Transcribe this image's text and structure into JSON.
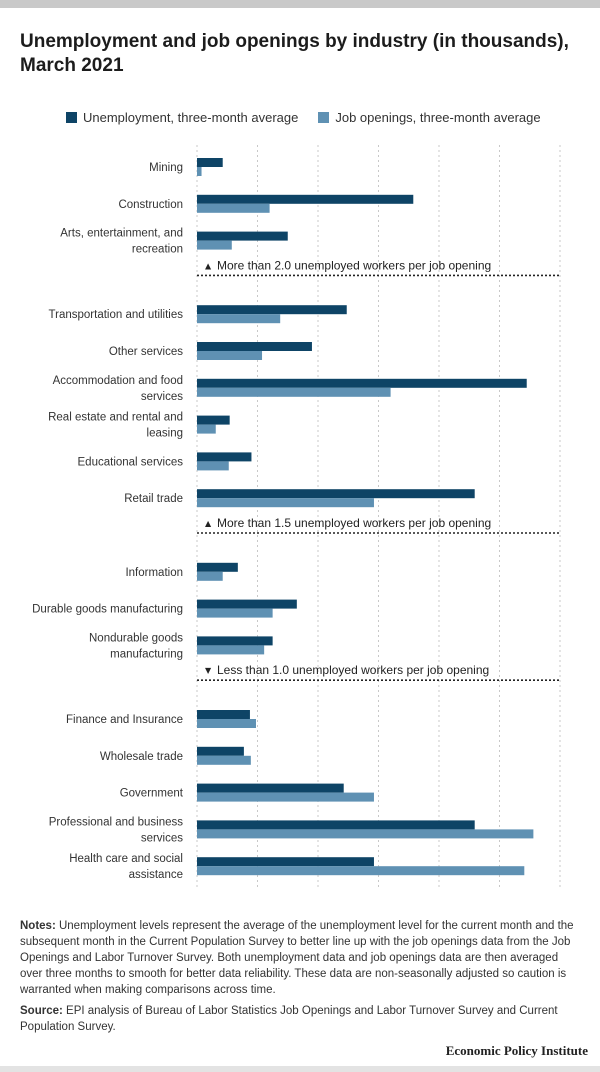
{
  "title": "Unemployment and job openings by industry (in thousands), March 2021",
  "legend": [
    {
      "label": "Unemployment, three-month average",
      "color": "#0e4466"
    },
    {
      "label": "Job openings, three-month average",
      "color": "#5f91b3"
    }
  ],
  "chart_data": {
    "type": "bar",
    "orientation": "horizontal",
    "grid": true,
    "xlim": [
      0,
      1200
    ],
    "tick_labels_shown": false,
    "series": [
      {
        "name": "Unemployment, three-month average",
        "color": "#0e4466"
      },
      {
        "name": "Job openings, three-month average",
        "color": "#5f91b3"
      }
    ],
    "groups": [
      {
        "divider_label": "More than 2.0 unemployed workers per job opening",
        "divider_marker": "▲",
        "items": [
          {
            "label": [
              "Mining"
            ],
            "unemployment": 85,
            "openings": 15
          },
          {
            "label": [
              "Construction"
            ],
            "unemployment": 715,
            "openings": 240
          },
          {
            "label": [
              "Arts, entertainment, and",
              "recreation"
            ],
            "unemployment": 300,
            "openings": 115
          }
        ]
      },
      {
        "divider_label": "More than 1.5 unemployed workers per job opening",
        "divider_marker": "▲",
        "items": [
          {
            "label": [
              "Transportation and utilities"
            ],
            "unemployment": 495,
            "openings": 275
          },
          {
            "label": [
              "Other services"
            ],
            "unemployment": 380,
            "openings": 215
          },
          {
            "label": [
              "Accommodation and food",
              "services"
            ],
            "unemployment": 1090,
            "openings": 640
          },
          {
            "label": [
              "Real estate and rental and",
              "leasing"
            ],
            "unemployment": 108,
            "openings": 62
          },
          {
            "label": [
              "Educational services"
            ],
            "unemployment": 180,
            "openings": 105
          },
          {
            "label": [
              "Retail trade"
            ],
            "unemployment": 918,
            "openings": 585
          }
        ]
      },
      {
        "divider_label": "Less than 1.0 unemployed workers per job opening",
        "divider_marker": "▼",
        "items": [
          {
            "label": [
              "Information"
            ],
            "unemployment": 135,
            "openings": 85
          },
          {
            "label": [
              "Durable goods manufacturing"
            ],
            "unemployment": 330,
            "openings": 250
          },
          {
            "label": [
              "Nondurable goods",
              "manufacturing"
            ],
            "unemployment": 250,
            "openings": 222
          }
        ]
      },
      {
        "divider_label": "",
        "divider_marker": "",
        "items": [
          {
            "label": [
              "Finance and Insurance"
            ],
            "unemployment": 175,
            "openings": 195
          },
          {
            "label": [
              "Wholesale trade"
            ],
            "unemployment": 155,
            "openings": 178
          },
          {
            "label": [
              "Government"
            ],
            "unemployment": 485,
            "openings": 585
          },
          {
            "label": [
              "Professional and business",
              "services"
            ],
            "unemployment": 918,
            "openings": 1112
          },
          {
            "label": [
              "Health care and social",
              "assistance"
            ],
            "unemployment": 585,
            "openings": 1082
          }
        ]
      }
    ]
  },
  "notes": {
    "label": "Notes:",
    "text": " Unemployment levels represent the average of the unemployment level for the current month and the subsequent month in the Current Population Survey to better line up with the job openings data from the Job Openings and Labor Turnover Survey. Both unemployment data and job openings data are then averaged over three months to smooth for better data reliability. These data are non-seasonally adjusted so caution is warranted when making comparisons across time."
  },
  "source": {
    "label": "Source:",
    "text": " EPI analysis of Bureau of Labor Statistics Job Openings and Labor Turnover Survey and Current Population Survey."
  },
  "credit": "Economic Policy Institute"
}
